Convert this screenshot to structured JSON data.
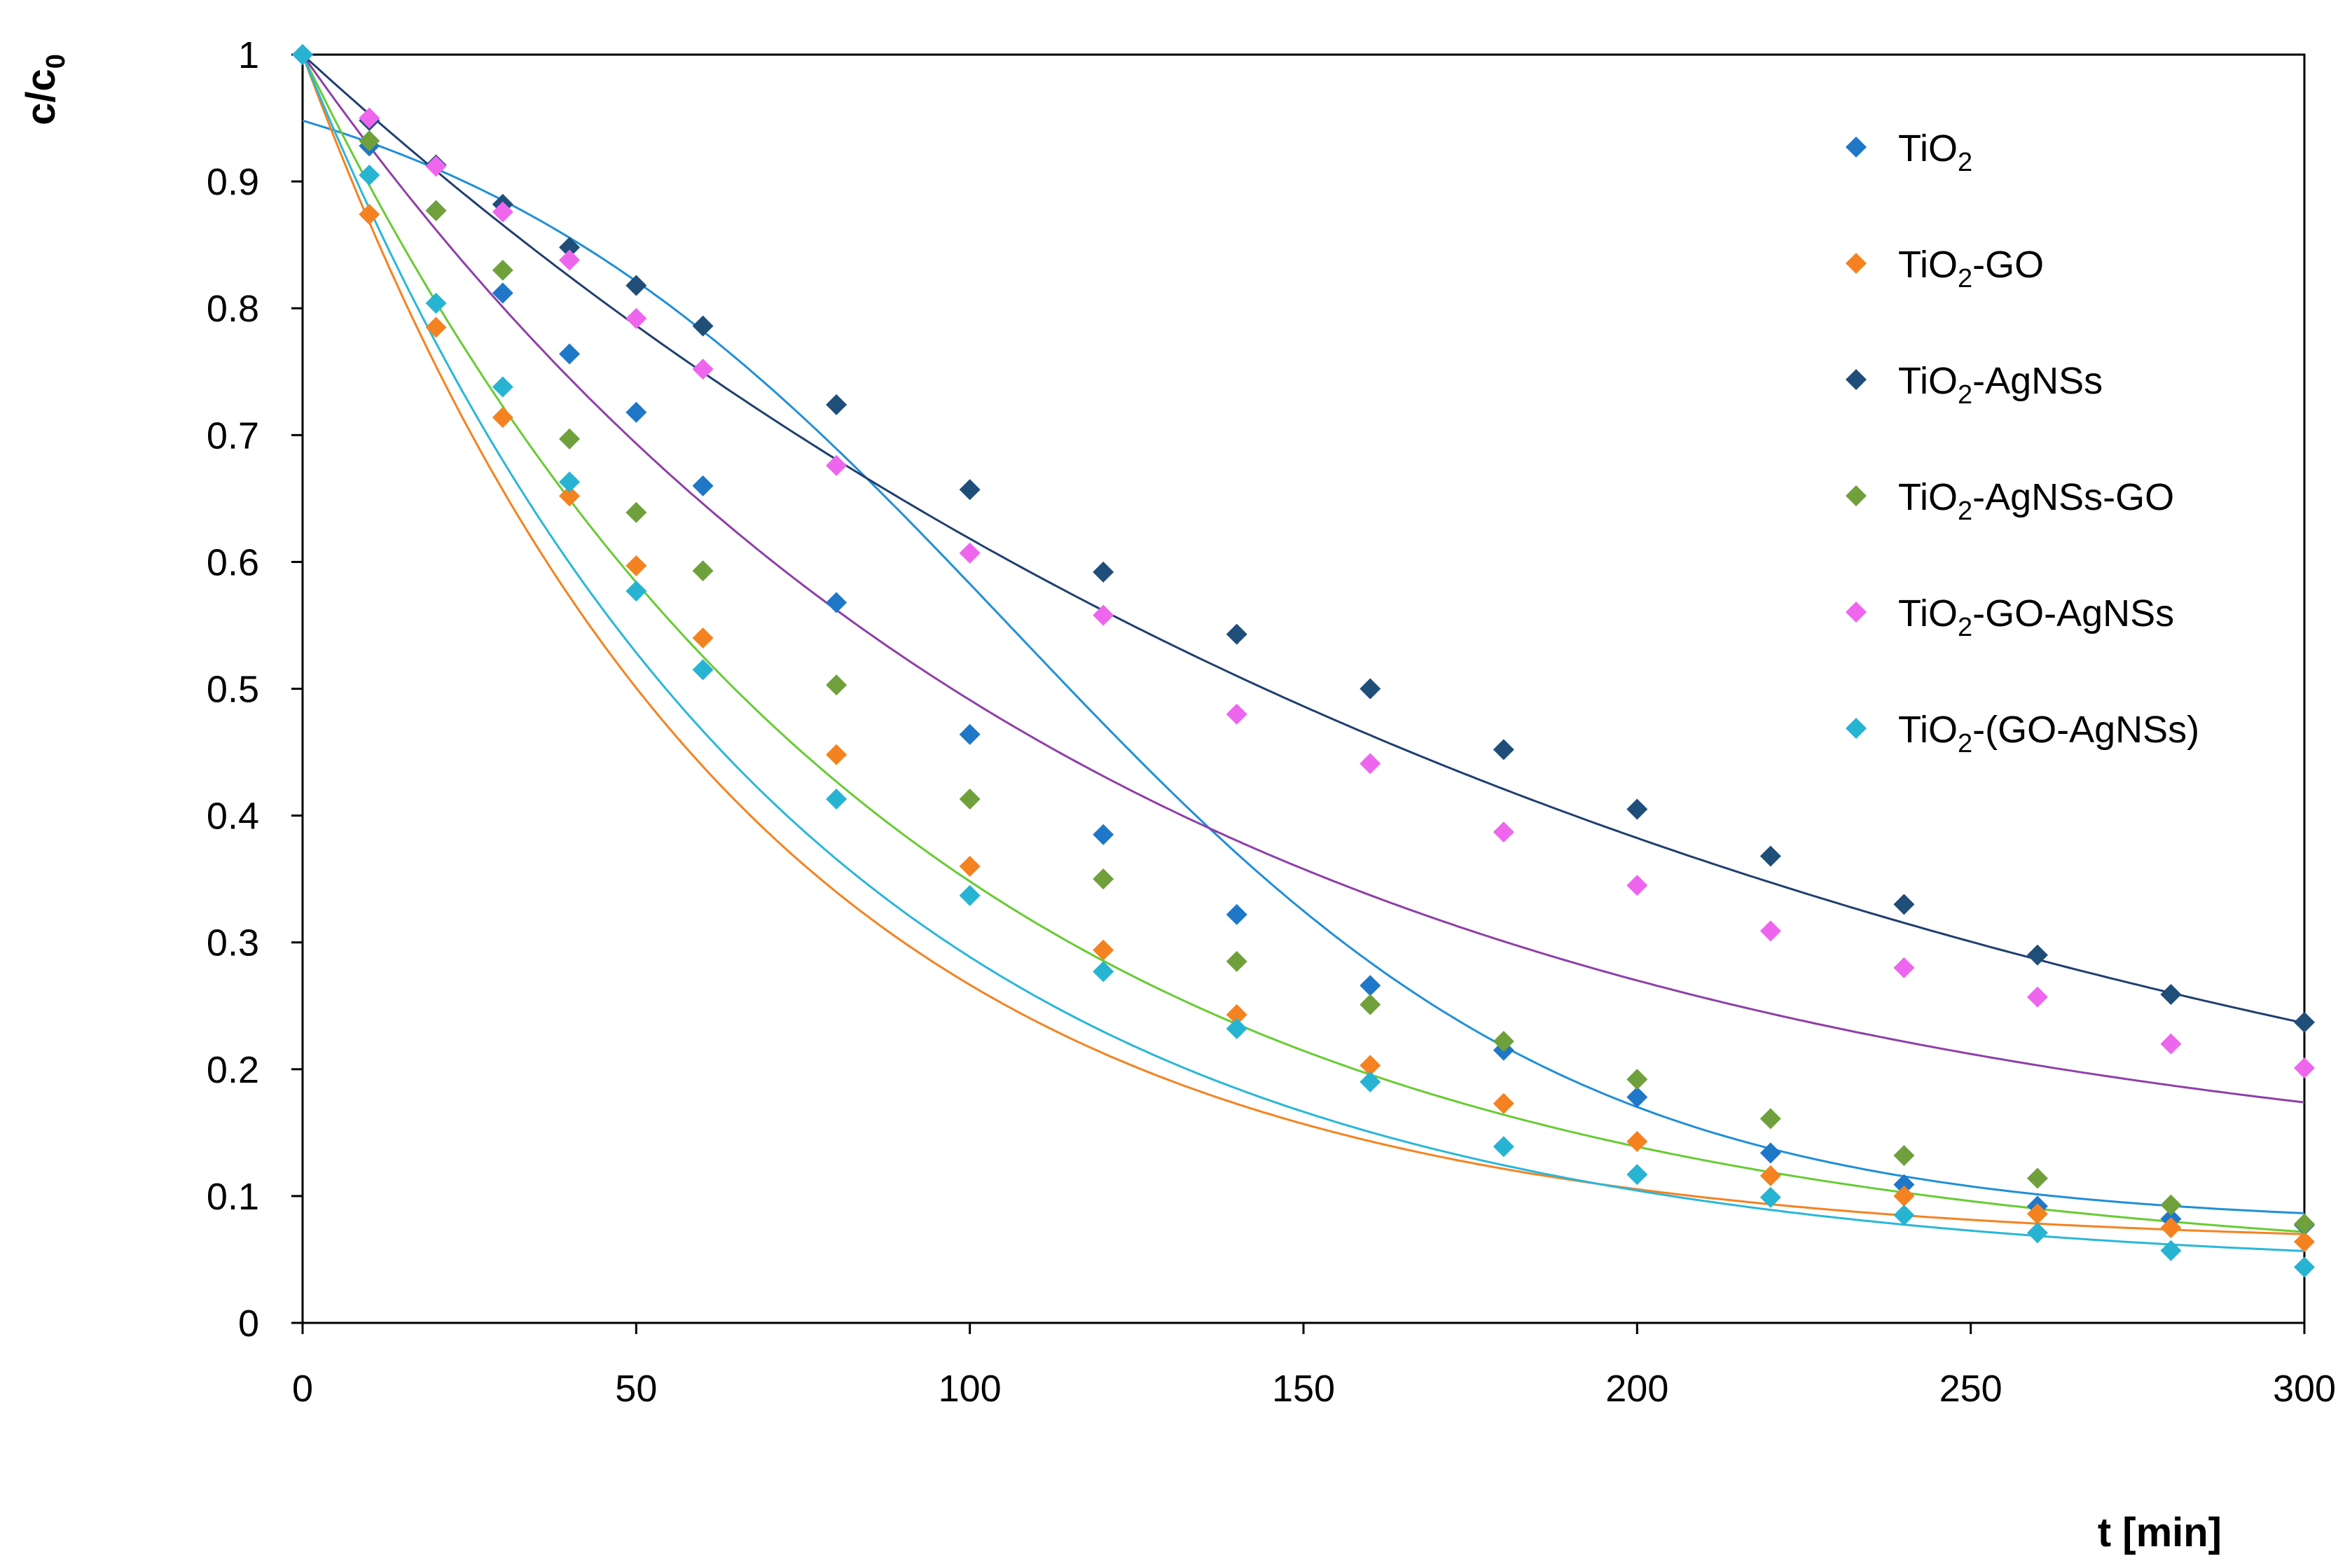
{
  "chart_data": {
    "type": "scatter",
    "title": "",
    "xlabel": "t [min]",
    "ylabel": {
      "main": "c/c",
      "sub": "0"
    },
    "xlim": [
      0,
      300
    ],
    "ylim": [
      0,
      1
    ],
    "xticks": [
      0,
      50,
      100,
      150,
      200,
      250,
      300
    ],
    "xtick_labels": [
      "0",
      "50",
      "100",
      "150",
      "200",
      "250",
      "300"
    ],
    "yticks": [
      0,
      0.1,
      0.2,
      0.3,
      0.4,
      0.5,
      0.6,
      0.7,
      0.8,
      0.9,
      1
    ],
    "ytick_labels": [
      "0",
      "0.1",
      "0.2",
      "0.3",
      "0.4",
      "0.5",
      "0.6",
      "0.7",
      "0.8",
      "0.9",
      "1"
    ],
    "grid": false,
    "legend_position": "top-right",
    "marker": "diamond",
    "x": [
      0,
      10,
      20,
      30,
      40,
      50,
      60,
      80,
      100,
      120,
      140,
      160,
      180,
      200,
      220,
      240,
      260,
      280,
      300
    ],
    "series": [
      {
        "name": "TiO2",
        "legend_label": {
          "prefix": "TiO",
          "sub": "2",
          "suffix": ""
        },
        "marker_color": "#1f77c8",
        "line_color": "#1f8fd8",
        "values": [
          1.0,
          0.928,
          0.877,
          0.812,
          0.764,
          0.718,
          0.66,
          0.568,
          0.464,
          0.385,
          0.322,
          0.266,
          0.215,
          0.178,
          0.134,
          0.109,
          0.092,
          0.082,
          0.077
        ],
        "fit": {
          "kind": "sigmoid",
          "A": 1.0195,
          "B": 0.0767,
          "t0": 106.25,
          "w": 42.5
        }
      },
      {
        "name": "TiO2-GO",
        "legend_label": {
          "prefix": "TiO",
          "sub": "2",
          "suffix": "-GO"
        },
        "marker_color": "#f58220",
        "line_color": "#f58220",
        "values": [
          1.0,
          0.874,
          0.785,
          0.714,
          0.652,
          0.597,
          0.54,
          0.448,
          0.36,
          0.294,
          0.243,
          0.203,
          0.173,
          0.143,
          0.116,
          0.1,
          0.086,
          0.075,
          0.064
        ],
        "fit": {
          "kind": "exp",
          "c": 0.06,
          "tau": 66
        }
      },
      {
        "name": "TiO2-AgNSs",
        "legend_label": {
          "prefix": "TiO",
          "sub": "2",
          "suffix": "-AgNSs"
        },
        "marker_color": "#1f4e79",
        "line_color": "#1f3f6f",
        "values": [
          1.0,
          0.948,
          0.913,
          0.882,
          0.848,
          0.818,
          0.786,
          0.724,
          0.657,
          0.592,
          0.543,
          0.5,
          0.452,
          0.405,
          0.368,
          0.33,
          0.29,
          0.259,
          0.237
        ],
        "fit": {
          "kind": "exp",
          "c": 0,
          "tau": 208
        }
      },
      {
        "name": "TiO2-AgNSs-GO",
        "legend_label": {
          "prefix": "TiO",
          "sub": "2",
          "suffix": "-AgNSs-GO"
        },
        "marker_color": "#70a03c",
        "line_color": "#66cc33",
        "values": [
          1.0,
          0.932,
          0.877,
          0.83,
          0.697,
          0.639,
          0.593,
          0.503,
          0.413,
          0.35,
          0.285,
          0.251,
          0.222,
          0.192,
          0.161,
          0.132,
          0.114,
          0.093,
          0.078
        ],
        "fit": {
          "kind": "exp",
          "c": 0.04,
          "tau": 88
        }
      },
      {
        "name": "TiO2-GO-AgNSs",
        "legend_label": {
          "prefix": "TiO",
          "sub": "2",
          "suffix": "-GO-AgNSs"
        },
        "marker_color": "#ee66ee",
        "line_color": "#8f3fa8",
        "values": [
          1.0,
          0.95,
          0.912,
          0.876,
          0.838,
          0.792,
          0.752,
          0.676,
          0.607,
          0.558,
          0.48,
          0.441,
          0.387,
          0.345,
          0.309,
          0.28,
          0.257,
          0.22,
          0.201
        ],
        "fit": {
          "kind": "exp",
          "c": 0.1,
          "tau": 120
        }
      },
      {
        "name": "TiO2-(GO-AgNSs)",
        "legend_label": {
          "prefix": "TiO",
          "sub": "2",
          "suffix": "-(GO-AgNSs)"
        },
        "marker_color": "#27b4d2",
        "line_color": "#29b7d9",
        "values": [
          1.0,
          0.905,
          0.804,
          0.738,
          0.663,
          0.577,
          0.515,
          0.413,
          0.337,
          0.277,
          0.232,
          0.19,
          0.139,
          0.117,
          0.099,
          0.085,
          0.071,
          0.057,
          0.044
        ],
        "fit": {
          "kind": "exp",
          "c": 0.04,
          "tau": 74
        }
      }
    ]
  }
}
